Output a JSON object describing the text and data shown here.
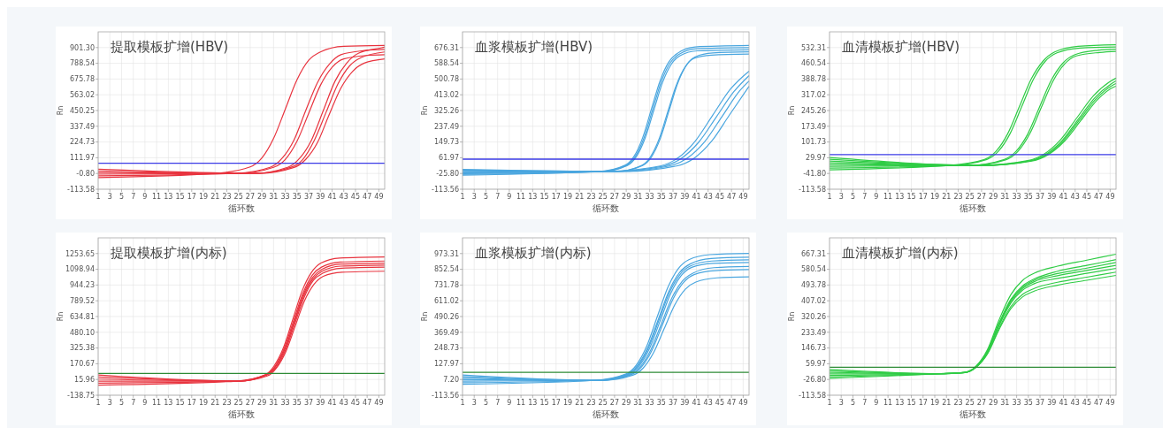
{
  "chart_data": [
    {
      "type": "line",
      "title": "提取模板扩增(HBV)",
      "xlabel": "循环数",
      "ylabel": "Rn",
      "xlim": [
        1,
        50
      ],
      "xticks": [
        1,
        3,
        5,
        7,
        9,
        11,
        13,
        15,
        17,
        19,
        21,
        23,
        25,
        27,
        29,
        31,
        33,
        35,
        37,
        39,
        41,
        43,
        45,
        47,
        49
      ],
      "ylim": [
        -113.58,
        1014
      ],
      "yticks": [
        -113.58,
        {
          "value": -0.8,
          "label": "-0.80"
        },
        111.97,
        224.73,
        337.49,
        450.25,
        563.02,
        675.78,
        788.54,
        {
          "value": 901.3,
          "label": "901.30"
        }
      ],
      "grid": true,
      "ref_lines": [
        {
          "axis": "y",
          "value": 72,
          "color": "#3b3be6"
        }
      ],
      "series": [
        {
          "color": "#e8343f",
          "x": [
            1,
            21,
            27,
            29,
            31,
            33,
            35,
            37,
            39,
            43,
            50
          ],
          "values": [
            -30,
            0,
            46,
            110,
            250,
            460,
            670,
            810,
            870,
            910,
            916
          ]
        },
        {
          "color": "#e8343f",
          "x": [
            1,
            24.5,
            30.5,
            32.5,
            34.5,
            36.5,
            38.5,
            40.5,
            42.5,
            46.5,
            50
          ],
          "values": [
            -18,
            0,
            45,
            110,
            240,
            450,
            650,
            780,
            850,
            880,
            888
          ]
        },
        {
          "color": "#e8343f",
          "x": [
            1,
            25,
            31,
            33,
            35,
            37,
            39,
            41,
            43,
            47,
            50
          ],
          "values": [
            -6,
            0,
            43,
            100,
            230,
            430,
            630,
            760,
            820,
            845,
            850
          ]
        },
        {
          "color": "#e8343f",
          "x": [
            1,
            27.5,
            33.5,
            35.5,
            37.5,
            39.5,
            41.5,
            43.5,
            45.5,
            49.5,
            50
          ],
          "values": [
            6,
            0,
            45,
            110,
            240,
            450,
            660,
            790,
            860,
            900,
            905
          ]
        },
        {
          "color": "#e8343f",
          "x": [
            1,
            28,
            34,
            36,
            38,
            40,
            42,
            44,
            46,
            50
          ],
          "values": [
            18,
            0,
            44,
            100,
            240,
            440,
            640,
            770,
            830,
            870
          ]
        },
        {
          "color": "#e8343f",
          "x": [
            1,
            28.5,
            34.5,
            36.5,
            38.5,
            40.5,
            42.5,
            44.5,
            46.5,
            50
          ],
          "values": [
            30,
            0,
            42,
            100,
            220,
            420,
            610,
            730,
            790,
            820
          ]
        }
      ]
    },
    {
      "type": "line",
      "title": "血浆模板扩增(HBV)",
      "xlabel": "循环数",
      "ylabel": "Rn",
      "xlim": [
        1,
        50
      ],
      "xticks": [
        1,
        3,
        5,
        7,
        9,
        11,
        13,
        15,
        17,
        19,
        21,
        23,
        25,
        27,
        29,
        31,
        33,
        35,
        37,
        39,
        41,
        43,
        45,
        47,
        49
      ],
      "ylim": [
        -113.56,
        764
      ],
      "yticks": [
        -113.56,
        {
          "value": -25.8,
          "label": "-25.80"
        },
        61.97,
        149.73,
        237.49,
        325.26,
        413.02,
        500.78,
        588.54,
        676.31
      ],
      "grid": true,
      "ref_lines": [
        {
          "axis": "y",
          "value": 54,
          "color": "#3b3be6"
        }
      ],
      "series": [
        {
          "color": "#4aa6df",
          "x": [
            1,
            24.3,
            28.8,
            30.3,
            31.8,
            33.3,
            34.8,
            36.3,
            37.8,
            40.8,
            50
          ],
          "values": [
            -35,
            -15,
            20,
            68,
            173,
            333,
            492,
            597,
            645,
            680,
            688
          ]
        },
        {
          "color": "#4aa6df",
          "x": [
            1,
            24.5,
            29,
            30.5,
            32,
            33.5,
            35,
            36.5,
            38,
            41,
            50
          ],
          "values": [
            -27,
            -15,
            19,
            67,
            170,
            329,
            487,
            590,
            638,
            670,
            676
          ]
        },
        {
          "color": "#4aa6df",
          "x": [
            1,
            24.7,
            29.2,
            30.7,
            32.2,
            33.7,
            35.2,
            36.7,
            38.2,
            41.2,
            50
          ],
          "values": [
            -19,
            -15,
            19,
            67,
            169,
            325,
            481,
            583,
            631,
            658,
            664
          ]
        },
        {
          "color": "#4aa6df",
          "x": [
            1,
            27.3,
            31.8,
            33.3,
            34.8,
            36.3,
            37.8,
            39.3,
            40.8,
            43.8,
            50
          ],
          "values": [
            -11,
            -15,
            19,
            66,
            167,
            322,
            477,
            578,
            625,
            646,
            652
          ]
        },
        {
          "color": "#4aa6df",
          "x": [
            1,
            27.1,
            31.6,
            33.1,
            34.6,
            36.1,
            37.6,
            39.1,
            40.6,
            43.6,
            50
          ],
          "values": [
            -3,
            -15,
            18,
            65,
            165,
            318,
            470,
            570,
            617,
            634,
            640
          ]
        },
        {
          "color": "#4aa6df",
          "x": [
            1,
            25.8,
            34.8,
            37.8,
            40.8,
            43.8,
            46.8,
            50
          ],
          "values": [
            -31,
            -15,
            16,
            60,
            155,
            300,
            444,
            545
          ]
        },
        {
          "color": "#4aa6df",
          "x": [
            1,
            26.4,
            35.4,
            38.4,
            41.4,
            44.4,
            47.4,
            50
          ],
          "values": [
            -23,
            -15,
            15,
            58,
            149,
            289,
            430,
            520
          ]
        },
        {
          "color": "#4aa6df",
          "x": [
            1,
            27.4,
            36.4,
            39.4,
            42.4,
            45.4,
            48.4,
            50
          ],
          "values": [
            -15,
            -15,
            16,
            59,
            151,
            293,
            435,
            490
          ]
        },
        {
          "color": "#4aa6df",
          "x": [
            1,
            28.6,
            37.6,
            40.6,
            43.6,
            46.6,
            50
          ],
          "values": [
            -7,
            -15,
            16,
            59,
            154,
            298,
            460
          ]
        }
      ]
    },
    {
      "type": "line",
      "title": "血清模板扩增(HBV)",
      "xlabel": "循环数",
      "ylabel": "Rn",
      "xlim": [
        1,
        50
      ],
      "xticks": [
        1,
        3,
        5,
        7,
        9,
        11,
        13,
        15,
        17,
        19,
        21,
        23,
        25,
        27,
        29,
        31,
        33,
        35,
        37,
        39,
        41,
        43,
        45,
        47,
        49
      ],
      "ylim": [
        -113.58,
        604
      ],
      "yticks": [
        -113.58,
        {
          "value": -41.8,
          "label": "-41.80"
        },
        29.97,
        101.73,
        173.49,
        245.26,
        317.02,
        388.78,
        460.54,
        532.31
      ],
      "grid": true,
      "ref_lines": [
        {
          "axis": "y",
          "value": 44,
          "color": "#3b3be6"
        }
      ],
      "series": [
        {
          "color": "#2fcc45",
          "x": [
            1,
            21.5,
            27.5,
            29.5,
            31.5,
            33.5,
            35.5,
            37.5,
            39.5,
            43.5,
            50
          ],
          "values": [
            -25,
            -5,
            22,
            60,
            141,
            265,
            389,
            470,
            512,
            538,
            545
          ]
        },
        {
          "color": "#2fcc45",
          "x": [
            1,
            21.9,
            27.9,
            29.9,
            31.9,
            33.9,
            35.9,
            37.9,
            39.9,
            43.9,
            50
          ],
          "values": [
            -17,
            -5,
            22,
            60,
            141,
            265,
            389,
            470,
            508,
            530,
            535
          ]
        },
        {
          "color": "#2fcc45",
          "x": [
            1,
            24.9,
            30.9,
            32.9,
            34.9,
            36.9,
            38.9,
            40.9,
            42.9,
            46.9,
            50
          ],
          "values": [
            -9,
            -5,
            22,
            59,
            138,
            260,
            382,
            461,
            499,
            520,
            525
          ]
        },
        {
          "color": "#2fcc45",
          "x": [
            1,
            25.2,
            31.2,
            33.2,
            35.2,
            37.2,
            39.2,
            41.2,
            43.2,
            47.2,
            50
          ],
          "values": [
            -1,
            -5,
            21,
            58,
            137,
            258,
            378,
            457,
            494,
            510,
            515
          ]
        },
        {
          "color": "#2fcc45",
          "x": [
            1,
            26.5,
            34.9,
            37.7,
            40.5,
            43.3,
            46.1,
            48.9,
            50
          ],
          "values": [
            7,
            -5,
            17,
            47,
            112,
            212,
            311,
            376,
            393
          ]
        },
        {
          "color": "#2fcc45",
          "x": [
            1,
            26.8,
            35.2,
            38,
            40.8,
            43.6,
            46.4,
            49.2,
            50
          ],
          "values": [
            15,
            -5,
            16,
            46,
            109,
            207,
            304,
            367,
            380
          ]
        },
        {
          "color": "#2fcc45",
          "x": [
            1,
            27,
            35.4,
            38.2,
            41,
            43.8,
            46.6,
            49.4,
            50
          ],
          "values": [
            23,
            -5,
            16,
            45,
            108,
            204,
            299,
            360,
            368
          ]
        },
        {
          "color": "#2fcc45",
          "x": [
            1,
            27.2,
            35.6,
            38.4,
            41.2,
            44,
            46.8,
            49.6,
            50
          ],
          "values": [
            31,
            -5,
            15,
            44,
            106,
            200,
            294,
            352,
            356
          ]
        }
      ]
    },
    {
      "type": "line",
      "title": "提取模板扩增(内标)",
      "xlabel": "循环数",
      "ylabel": "Rn",
      "xlim": [
        1,
        50
      ],
      "xticks": [
        1,
        3,
        5,
        7,
        9,
        11,
        13,
        15,
        17,
        19,
        21,
        23,
        25,
        27,
        29,
        31,
        33,
        35,
        37,
        39,
        41,
        43,
        45,
        47,
        49
      ],
      "ylim": [
        -138.75,
        1408
      ],
      "yticks": [
        -138.75,
        15.96,
        170.67,
        325.38,
        {
          "value": 480.1,
          "label": "480.10"
        },
        634.81,
        789.52,
        944.23,
        1098.94,
        1253.65
      ],
      "grid": true,
      "ref_lines": [
        {
          "axis": "y",
          "value": 75,
          "color": "#2e8b36"
        }
      ],
      "series": [
        {
          "color": "#e8343f",
          "x": [
            1,
            24.7,
            29.5,
            31.1,
            32.7,
            34.3,
            35.9,
            37.5,
            39.1,
            42.3,
            50
          ],
          "values": [
            -40,
            0,
            60,
            150,
            330,
            610,
            890,
            1070,
            1160,
            1210,
            1220
          ]
        },
        {
          "color": "#e8343f",
          "x": [
            1,
            24.8,
            29.6,
            31.2,
            32.8,
            34.4,
            36,
            37.6,
            39.2,
            42.4,
            50
          ],
          "values": [
            -20,
            0,
            60,
            140,
            320,
            590,
            860,
            1040,
            1120,
            1170,
            1180
          ]
        },
        {
          "color": "#e8343f",
          "x": [
            1,
            24.9,
            29.7,
            31.3,
            32.9,
            34.5,
            36.1,
            37.7,
            39.3,
            42.5,
            50
          ],
          "values": [
            0,
            0,
            60,
            140,
            310,
            580,
            850,
            1020,
            1100,
            1150,
            1160
          ]
        },
        {
          "color": "#e8343f",
          "x": [
            1,
            24.9,
            29.7,
            31.3,
            32.9,
            34.5,
            36.1,
            37.7,
            39.3,
            42.5,
            50
          ],
          "values": [
            20,
            0,
            60,
            140,
            310,
            570,
            830,
            1000,
            1080,
            1130,
            1140
          ]
        },
        {
          "color": "#e8343f",
          "x": [
            1,
            25,
            29.8,
            31.4,
            33,
            34.6,
            36.2,
            37.8,
            39.4,
            42.6,
            50
          ],
          "values": [
            40,
            0,
            60,
            130,
            300,
            560,
            820,
            990,
            1060,
            1110,
            1120
          ]
        },
        {
          "color": "#e8343f",
          "x": [
            1,
            25.1,
            29.9,
            31.5,
            33.1,
            34.7,
            36.3,
            37.9,
            39.5,
            42.7,
            50
          ],
          "values": [
            60,
            0,
            50,
            130,
            290,
            540,
            790,
            950,
            1030,
            1070,
            1080
          ]
        }
      ]
    },
    {
      "type": "line",
      "title": "血浆模板扩增(内标)",
      "xlabel": "循环数",
      "ylabel": "Rn",
      "xlim": [
        1,
        50
      ],
      "xticks": [
        1,
        3,
        5,
        7,
        9,
        11,
        13,
        15,
        17,
        19,
        21,
        23,
        25,
        27,
        29,
        31,
        33,
        35,
        37,
        39,
        41,
        43,
        45,
        47,
        49
      ],
      "ylim": [
        -113.56,
        1094
      ],
      "yticks": [
        -113.56,
        {
          "value": 7.2,
          "label": "7.20"
        },
        127.97,
        248.73,
        369.49,
        490.26,
        611.02,
        731.78,
        852.54,
        973.31
      ],
      "grid": true,
      "ref_lines": [
        {
          "axis": "y",
          "value": 62,
          "color": "#2e8b36"
        }
      ],
      "series": [
        {
          "color": "#4aa6df",
          "x": [
            1,
            23.5,
            28.9,
            30.7,
            32.5,
            34.3,
            36.1,
            37.9,
            39.7,
            43.3,
            50
          ],
          "values": [
            -30,
            0,
            49,
            117,
            263,
            488,
            712,
            858,
            926,
            965,
            975
          ]
        },
        {
          "color": "#4aa6df",
          "x": [
            1,
            23.7,
            29.1,
            30.9,
            32.7,
            34.5,
            36.3,
            38.1,
            39.9,
            43.5,
            50
          ],
          "values": [
            -18,
            0,
            47,
            113,
            254,
            470,
            686,
            827,
            893,
            935,
            945
          ]
        },
        {
          "color": "#4aa6df",
          "x": [
            1,
            23.8,
            29.2,
            31,
            32.8,
            34.6,
            36.4,
            38.2,
            40,
            43.6,
            50
          ],
          "values": [
            -6,
            0,
            46,
            111,
            250,
            463,
            675,
            814,
            879,
            916,
            925
          ]
        },
        {
          "color": "#4aa6df",
          "x": [
            1,
            24,
            29.4,
            31.2,
            33,
            34.8,
            36.6,
            38.4,
            40.2,
            43.8,
            50
          ],
          "values": [
            6,
            0,
            46,
            110,
            247,
            457,
            667,
            804,
            868,
            898,
            905
          ]
        },
        {
          "color": "#4aa6df",
          "x": [
            1,
            24.2,
            29.6,
            31.4,
            33.2,
            35,
            36.8,
            38.6,
            40.4,
            44,
            50
          ],
          "values": [
            18,
            0,
            43,
            104,
            234,
            433,
            632,
            762,
            823,
            865,
            875
          ]
        },
        {
          "color": "#4aa6df",
          "x": [
            1,
            24.4,
            29.8,
            31.6,
            33.4,
            35.2,
            37,
            38.8,
            40.6,
            44.2,
            50
          ],
          "values": [
            30,
            0,
            43,
            103,
            231,
            428,
            624,
            752,
            812,
            842,
            850
          ]
        },
        {
          "color": "#4aa6df",
          "x": [
            1,
            24.7,
            30.1,
            31.9,
            33.7,
            35.5,
            37.3,
            39.1,
            40.9,
            44.5,
            50
          ],
          "values": [
            42,
            0,
            40,
            95,
            215,
            398,
            580,
            700,
            755,
            787,
            795
          ]
        }
      ]
    },
    {
      "type": "line",
      "title": "血清模板扩增(内标)",
      "xlabel": "循环数",
      "ylabel": "Rn",
      "xlim": [
        1,
        50
      ],
      "xticks": [
        1,
        3,
        5,
        7,
        9,
        11,
        13,
        15,
        17,
        19,
        21,
        23,
        25,
        27,
        29,
        31,
        33,
        35,
        37,
        39,
        41,
        43,
        45,
        47,
        49
      ],
      "ylim": [
        -113.58,
        754
      ],
      "yticks": [
        -113.58,
        {
          "value": -26.8,
          "label": "-26.80"
        },
        59.97,
        146.73,
        233.49,
        320.26,
        407.02,
        493.78,
        580.54,
        667.31
      ],
      "grid": true,
      "ref_lines": [
        {
          "axis": "y",
          "value": 41,
          "color": "#2e8b36"
        }
      ],
      "x": [
        1,
        20,
        24,
        26,
        28,
        30,
        32,
        34,
        36,
        40,
        45,
        50
      ],
      "series": [
        {
          "color": "#2fcc45",
          "values": [
            -20,
            5,
            12,
            45,
            137,
            302,
            440,
            519,
            559,
            598,
            631,
            664
          ]
        },
        {
          "color": "#2fcc45",
          "values": [
            -12,
            5,
            11,
            42,
            129,
            284,
            415,
            489,
            527,
            570,
            602,
            634
          ]
        },
        {
          "color": "#2fcc45",
          "values": [
            -4,
            5,
            11,
            42,
            128,
            281,
            410,
            483,
            520,
            557,
            587,
            618
          ]
        },
        {
          "color": "#2fcc45",
          "values": [
            4,
            5,
            11,
            41,
            126,
            276,
            403,
            475,
            512,
            545,
            574,
            602
          ]
        },
        {
          "color": "#2fcc45",
          "values": [
            12,
            5,
            11,
            40,
            123,
            271,
            394,
            465,
            501,
            530,
            558,
            586
          ]
        },
        {
          "color": "#2fcc45",
          "values": [
            20,
            5,
            11,
            39,
            117,
            257,
            375,
            442,
            475,
            509,
            537,
            565
          ]
        },
        {
          "color": "#2fcc45",
          "values": [
            28,
            5,
            10,
            38,
            113,
            249,
            363,
            428,
            460,
            493,
            520,
            547
          ]
        }
      ]
    }
  ]
}
